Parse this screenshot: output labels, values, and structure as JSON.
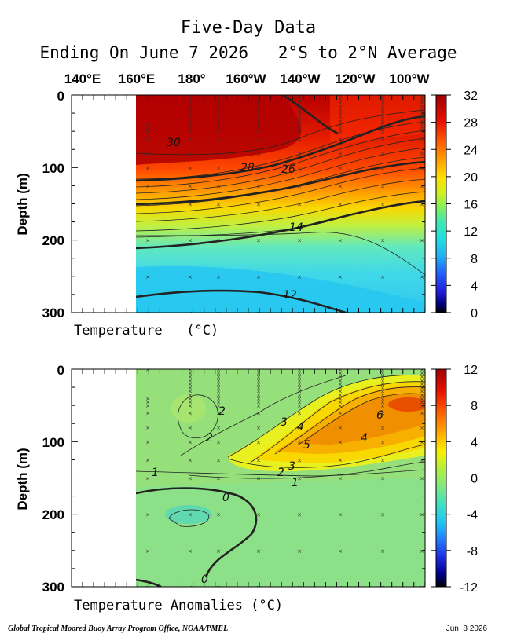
{
  "title": "Five-Day Data",
  "subtitle": "Ending On June 7 2026   2°S to 2°N Average",
  "longitude_labels": [
    "140°E",
    "160°E",
    "180°",
    "160°W",
    "140°W",
    "120°W",
    "100°W"
  ],
  "footer": {
    "credit": "Global Tropical Moored Buoy Array Program Office, NOAA/PMEL",
    "date": "Jun  8 2026"
  },
  "chart_data": [
    {
      "type": "heatmap",
      "xlabel": "Temperature   (°C)",
      "ylabel": "Depth (m)",
      "ylim": [
        0,
        300
      ],
      "y_ticks": [
        "0",
        "100",
        "200",
        "300"
      ],
      "colorbar": {
        "min": 0,
        "max": 32,
        "ticks": [
          "32",
          "28",
          "24",
          "20",
          "16",
          "12",
          "8",
          "4",
          "0"
        ]
      },
      "contour_labels": [
        "30",
        "28",
        "26",
        "14",
        "12"
      ],
      "data_start_lon": "160°E",
      "colors": {
        "high": "#b80000",
        "low": "#28c8f0"
      }
    },
    {
      "type": "heatmap",
      "xlabel": "Temperature Anomalies (°C)",
      "ylabel": "Depth (m)",
      "ylim": [
        0,
        300
      ],
      "y_ticks": [
        "0",
        "100",
        "200",
        "300"
      ],
      "colorbar": {
        "min": -12,
        "max": 12,
        "ticks": [
          "12",
          "8",
          "4",
          "0",
          "-4",
          "-8",
          "-12"
        ]
      },
      "contour_labels": [
        "2",
        "2",
        "3",
        "4",
        "5",
        "6",
        "4",
        "1",
        "2",
        "3",
        "1",
        "0",
        "0"
      ],
      "data_start_lon": "160°E",
      "colors": {
        "positive": "#f0a000",
        "neutral": "#9ce27c",
        "negative": "#5cd8a8"
      }
    }
  ]
}
